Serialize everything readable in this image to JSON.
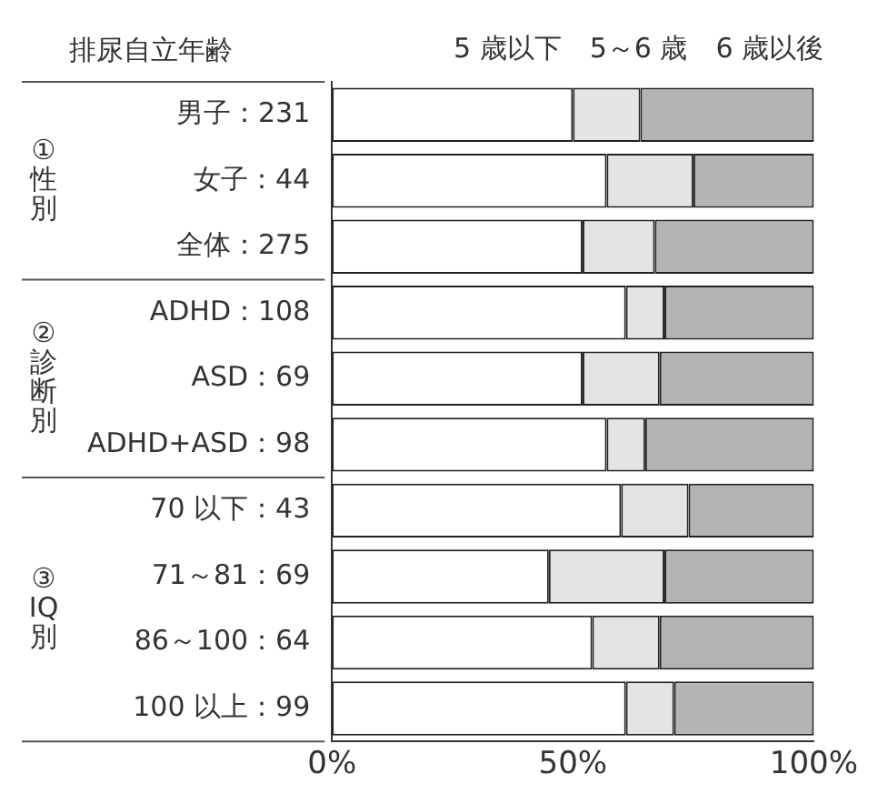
{
  "chart_data": {
    "type": "bar",
    "orientation": "horizontal",
    "stacked": true,
    "title": "排尿自立年齢",
    "categories": [
      "男子：231",
      "女子：44",
      "全体：275",
      "ADHD：108",
      "ASD：69",
      "ADHD+ASD：98",
      "70 以下：43",
      "71～81：69",
      "86～100：64",
      "100 以上：99"
    ],
    "series": [
      {
        "name": "5 歳以下",
        "color": "#ffffff",
        "values": [
          50,
          57,
          52,
          61,
          52,
          57,
          60,
          45,
          54,
          61
        ]
      },
      {
        "name": "5～6 歳",
        "color": "#e4e4e4",
        "values": [
          14,
          18,
          15,
          8,
          16,
          8,
          14,
          24,
          14,
          10
        ]
      },
      {
        "name": "6 歳以後",
        "color": "#b4b4b4",
        "values": [
          36,
          25,
          33,
          31,
          32,
          35,
          26,
          31,
          32,
          29
        ]
      }
    ],
    "xlim": [
      0,
      100
    ],
    "xticks": [
      {
        "value": 0,
        "label": "0%"
      },
      {
        "value": 50,
        "label": "50%"
      },
      {
        "value": 100,
        "label": "100%"
      }
    ],
    "grid": false,
    "legend": "top",
    "annotations": [
      "①性別",
      "②診断別",
      "③IQ別"
    ]
  }
}
